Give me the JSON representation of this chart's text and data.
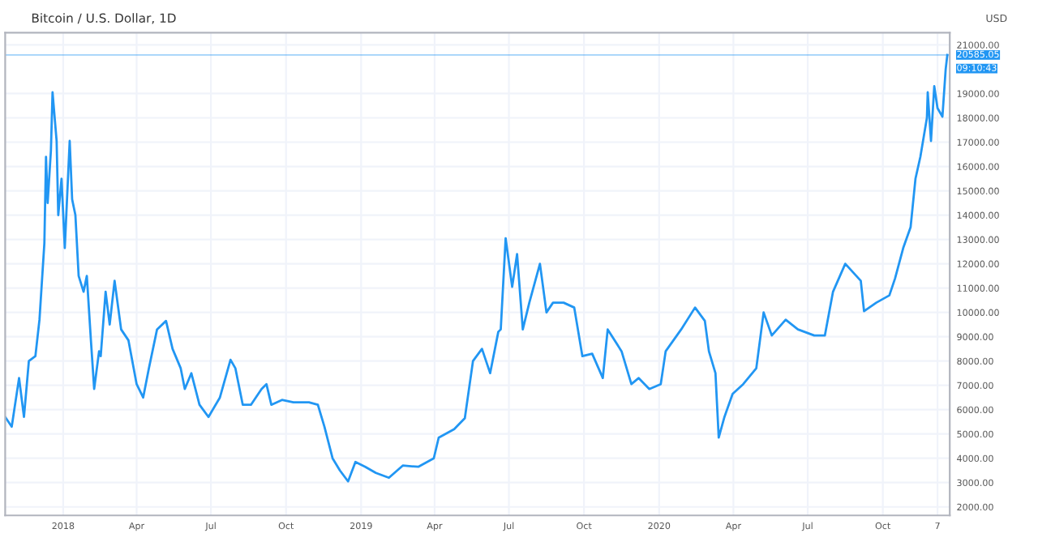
{
  "chart_data": {
    "type": "line",
    "title": "Bitcoin / U.S. Dollar, 1D",
    "ylabel": "USD",
    "x": [
      "2017-10-22",
      "2017-10-30",
      "2017-11-08",
      "2017-11-14",
      "2017-11-20",
      "2017-11-28",
      "2017-12-03",
      "2017-12-09",
      "2017-12-11",
      "2017-12-13",
      "2017-12-17",
      "2017-12-19",
      "2017-12-24",
      "2017-12-26",
      "2017-12-30",
      "2018-01-03",
      "2018-01-09",
      "2018-01-12",
      "2018-01-16",
      "2018-01-20",
      "2018-01-26",
      "2018-01-30",
      "2018-02-04",
      "2018-02-08",
      "2018-02-14",
      "2018-02-16",
      "2018-02-22",
      "2018-02-27",
      "2018-03-05",
      "2018-03-13",
      "2018-03-22",
      "2018-04-01",
      "2018-04-09",
      "2018-04-16",
      "2018-04-26",
      "2018-05-07",
      "2018-05-15",
      "2018-05-25",
      "2018-05-30",
      "2018-06-07",
      "2018-06-17",
      "2018-06-28",
      "2018-07-12",
      "2018-07-25",
      "2018-07-31",
      "2018-08-09",
      "2018-08-19",
      "2018-09-01",
      "2018-09-07",
      "2018-09-13",
      "2018-09-26",
      "2018-10-10",
      "2018-10-29",
      "2018-11-09",
      "2018-11-17",
      "2018-11-27",
      "2018-12-06",
      "2018-12-16",
      "2018-12-25",
      "2019-01-06",
      "2019-01-19",
      "2019-02-04",
      "2019-02-21",
      "2019-03-12",
      "2019-03-31",
      "2019-04-06",
      "2019-04-25",
      "2019-05-08",
      "2019-05-18",
      "2019-05-29",
      "2019-06-08",
      "2019-06-18",
      "2019-06-21",
      "2019-06-27",
      "2019-07-05",
      "2019-07-11",
      "2019-07-18",
      "2019-07-26",
      "2019-08-08",
      "2019-08-16",
      "2019-08-24",
      "2019-09-06",
      "2019-09-19",
      "2019-09-29",
      "2019-10-11",
      "2019-10-24",
      "2019-10-30",
      "2019-11-16",
      "2019-11-28",
      "2019-12-07",
      "2019-12-20",
      "2020-01-03",
      "2020-01-09",
      "2020-01-28",
      "2020-02-14",
      "2020-02-26",
      "2020-03-02",
      "2020-03-10",
      "2020-03-14",
      "2020-03-21",
      "2020-03-31",
      "2020-04-13",
      "2020-04-29",
      "2020-05-08",
      "2020-05-18",
      "2020-06-04",
      "2020-06-19",
      "2020-07-09",
      "2020-07-22",
      "2020-08-01",
      "2020-08-16",
      "2020-09-04",
      "2020-09-08",
      "2020-09-23",
      "2020-10-09",
      "2020-10-16",
      "2020-10-26",
      "2020-11-04",
      "2020-11-10",
      "2020-11-16",
      "2020-11-24",
      "2020-11-25",
      "2020-11-29",
      "2020-12-03",
      "2020-12-07",
      "2020-12-13",
      "2020-12-17",
      "2020-12-19"
    ],
    "series": [
      {
        "color": "#2196f3",
        "values": [
          5700,
          5300,
          7300,
          5700,
          8000,
          8200,
          9700,
          12850,
          16400,
          14500,
          16650,
          19050,
          17050,
          14000,
          15500,
          12650,
          17050,
          14650,
          14000,
          11500,
          10850,
          11500,
          8850,
          6850,
          8400,
          8200,
          10850,
          9500,
          11300,
          9300,
          8850,
          7050,
          6500,
          7700,
          9300,
          9650,
          8500,
          7700,
          6850,
          7500,
          6200,
          5700,
          6500,
          8050,
          7700,
          6200,
          6200,
          6850,
          7050,
          6200,
          6400,
          6300,
          6300,
          6200,
          5300,
          4000,
          3500,
          3050,
          3850,
          3650,
          3400,
          3200,
          3700,
          3650,
          4000,
          4850,
          5200,
          5650,
          8000,
          8500,
          7500,
          9200,
          9300,
          13050,
          11050,
          12400,
          9300,
          10400,
          12000,
          10000,
          10400,
          10400,
          10200,
          8200,
          8300,
          7300,
          9300,
          8400,
          7050,
          7300,
          6850,
          7050,
          8400,
          9300,
          10200,
          9650,
          8400,
          7500,
          4850,
          5700,
          6650,
          7050,
          7700,
          10000,
          9050,
          9700,
          9300,
          9050,
          9050,
          10850,
          12000,
          11300,
          10050,
          10400,
          10700,
          11400,
          12650,
          13500,
          15500,
          16400,
          18000,
          19050,
          17050,
          19300,
          18400,
          18050,
          20000,
          20585.05
        ]
      }
    ],
    "xlim": [
      "2017-10-22",
      "2020-12-22"
    ],
    "xticks": [
      {
        "value": "2018-01-01",
        "label": "2018"
      },
      {
        "value": "2018-04-01",
        "label": "Apr"
      },
      {
        "value": "2018-07-01",
        "label": "Jul"
      },
      {
        "value": "2018-10-01",
        "label": "Oct"
      },
      {
        "value": "2019-01-01",
        "label": "2019"
      },
      {
        "value": "2019-04-01",
        "label": "Apr"
      },
      {
        "value": "2019-07-01",
        "label": "Jul"
      },
      {
        "value": "2019-10-01",
        "label": "Oct"
      },
      {
        "value": "2020-01-01",
        "label": "2020"
      },
      {
        "value": "2020-04-01",
        "label": "Apr"
      },
      {
        "value": "2020-07-01",
        "label": "Jul"
      },
      {
        "value": "2020-10-01",
        "label": "Oct"
      },
      {
        "value": "2020-12-07",
        "label": "7"
      }
    ],
    "ylim": [
      1650,
      21500
    ],
    "yticks": [
      {
        "value": 2000,
        "label": "2000.00"
      },
      {
        "value": 3000,
        "label": "3000.00"
      },
      {
        "value": 4000,
        "label": "4000.00"
      },
      {
        "value": 5000,
        "label": "5000.00"
      },
      {
        "value": 6000,
        "label": "6000.00"
      },
      {
        "value": 7000,
        "label": "7000.00"
      },
      {
        "value": 8000,
        "label": "8000.00"
      },
      {
        "value": 9000,
        "label": "9000.00"
      },
      {
        "value": 10000,
        "label": "10000.00"
      },
      {
        "value": 11000,
        "label": "11000.00"
      },
      {
        "value": 12000,
        "label": "12000.00"
      },
      {
        "value": 13000,
        "label": "13000.00"
      },
      {
        "value": 14000,
        "label": "14000.00"
      },
      {
        "value": 15000,
        "label": "15000.00"
      },
      {
        "value": 16000,
        "label": "16000.00"
      },
      {
        "value": 17000,
        "label": "17000.00"
      },
      {
        "value": 18000,
        "label": "18000.00"
      },
      {
        "value": 19000,
        "label": "19000.00"
      },
      {
        "value": 21000,
        "label": "21000.00"
      }
    ],
    "ref_lines": [
      {
        "axis": "y",
        "value": 20585.05,
        "label": "20585.05",
        "color": "#2196f3"
      }
    ],
    "annotations": [
      "09:10:43"
    ],
    "grid": true,
    "marker": "none",
    "line_style": "solid"
  }
}
